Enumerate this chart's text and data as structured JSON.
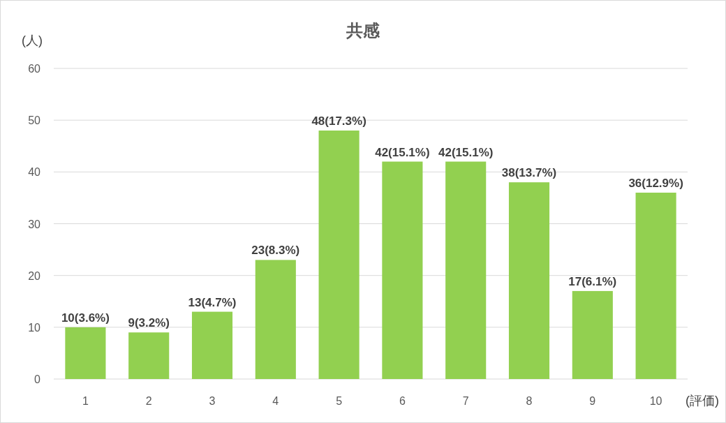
{
  "chart_data": {
    "type": "bar",
    "title": "共感",
    "ylabel": "(人)",
    "xlabel": "(評価)",
    "categories": [
      "1",
      "2",
      "3",
      "4",
      "5",
      "6",
      "7",
      "8",
      "9",
      "10"
    ],
    "values": [
      10,
      9,
      13,
      23,
      48,
      42,
      42,
      38,
      17,
      36
    ],
    "value_labels": [
      "10(3.6%)",
      "9(3.2%)",
      "13(4.7%)",
      "23(8.3%)",
      "48(17.3%)",
      "42(15.1%)",
      "42(15.1%)",
      "38(13.7%)",
      "17(6.1%)",
      "36(12.9%)"
    ],
    "color": "#92d050",
    "ylim": [
      0,
      60
    ],
    "yticks": [
      0,
      10,
      20,
      30,
      40,
      50,
      60
    ],
    "grid": "y"
  }
}
